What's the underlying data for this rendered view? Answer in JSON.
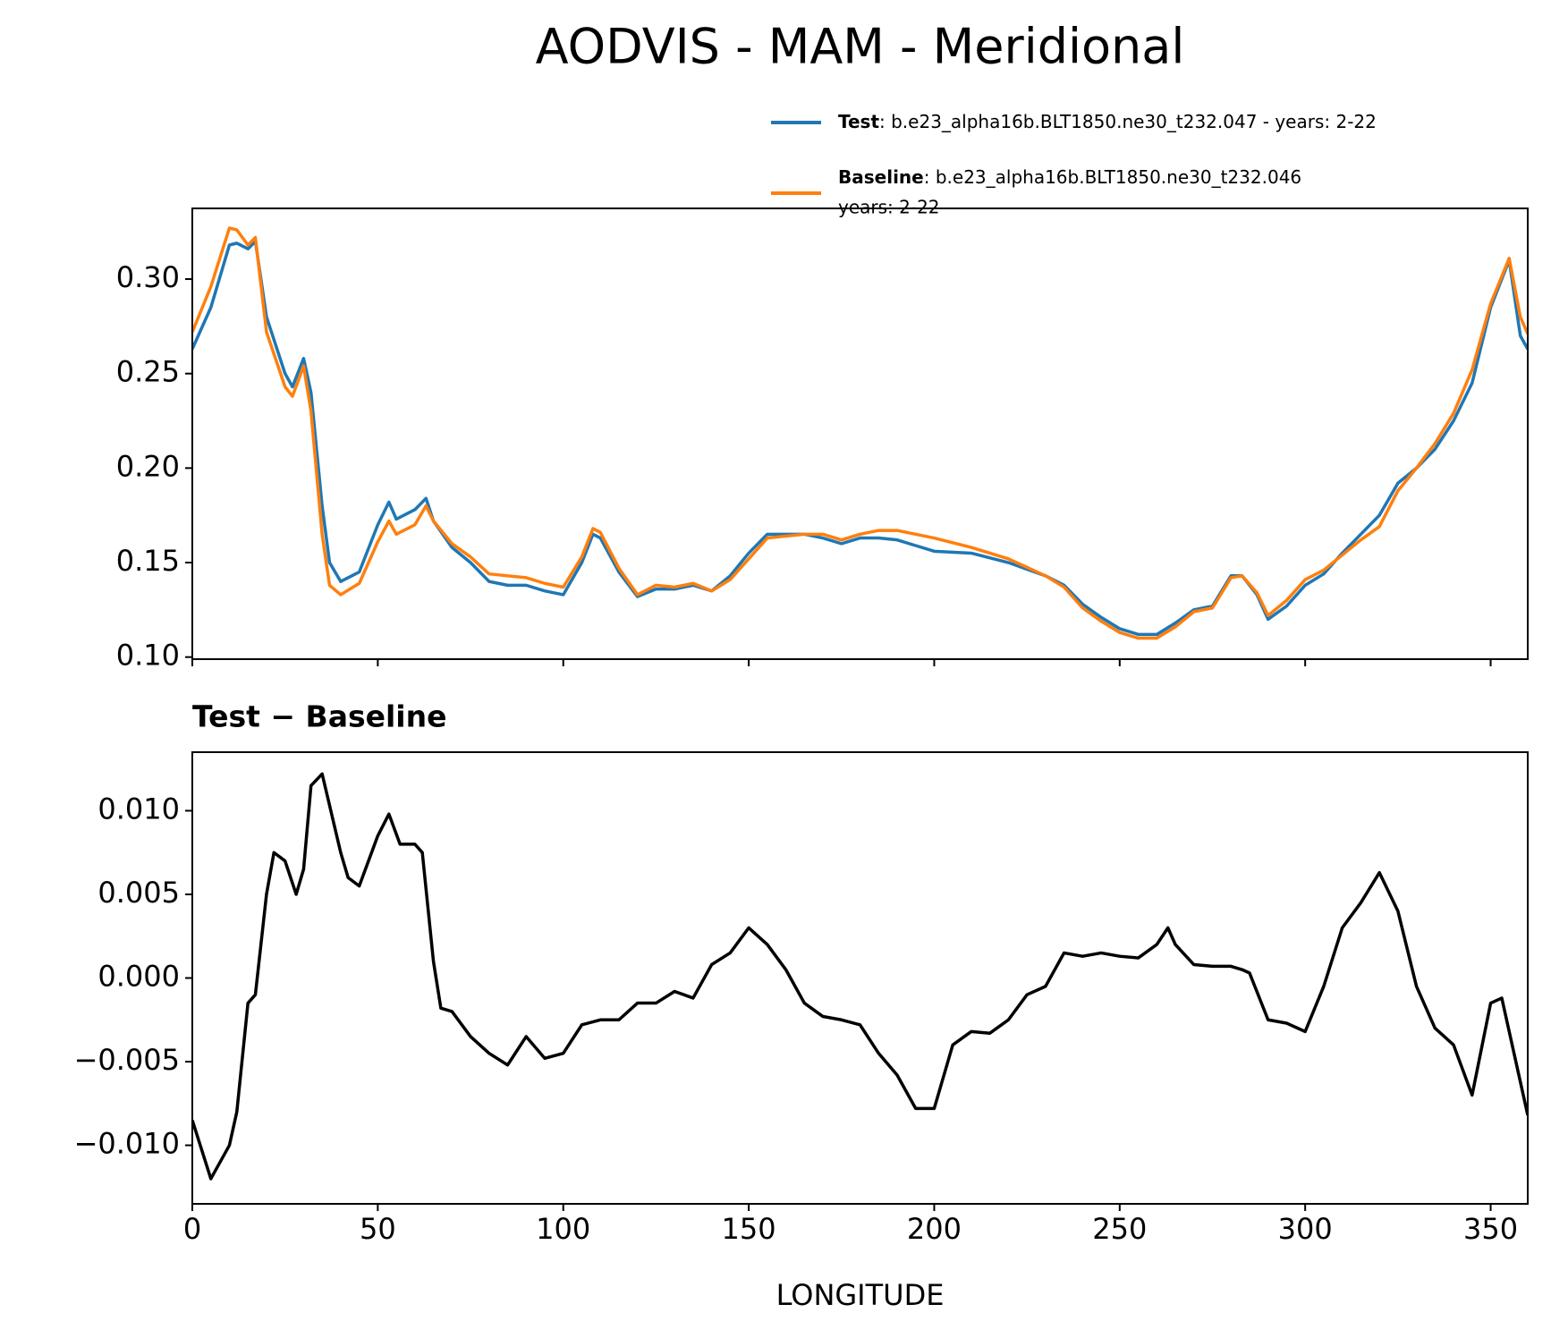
{
  "chart_data": [
    {
      "type": "line",
      "title": "AODVIS - MAM - Meridional",
      "x": [
        0,
        5,
        10,
        12,
        15,
        17,
        20,
        25,
        27,
        30,
        32,
        35,
        37,
        40,
        45,
        50,
        53,
        55,
        60,
        63,
        65,
        70,
        75,
        80,
        85,
        90,
        95,
        100,
        105,
        108,
        110,
        115,
        120,
        125,
        130,
        135,
        140,
        145,
        150,
        155,
        160,
        165,
        170,
        175,
        180,
        185,
        190,
        195,
        200,
        210,
        220,
        230,
        235,
        240,
        245,
        250,
        255,
        260,
        265,
        270,
        275,
        280,
        283,
        287,
        290,
        295,
        300,
        305,
        310,
        315,
        320,
        325,
        330,
        335,
        340,
        345,
        350,
        355,
        358,
        360
      ],
      "series": [
        {
          "name": "Test",
          "label": [
            ": b.e23_alpha16b.BLT1850.ne30_t232.047 - years: 2-22"
          ],
          "color": "#1f77b4",
          "values": [
            0.263,
            0.285,
            0.318,
            0.319,
            0.316,
            0.32,
            0.28,
            0.25,
            0.243,
            0.258,
            0.24,
            0.18,
            0.15,
            0.14,
            0.145,
            0.17,
            0.182,
            0.173,
            0.178,
            0.184,
            0.172,
            0.158,
            0.15,
            0.14,
            0.138,
            0.138,
            0.135,
            0.133,
            0.15,
            0.165,
            0.163,
            0.145,
            0.132,
            0.136,
            0.136,
            0.138,
            0.135,
            0.143,
            0.155,
            0.165,
            0.165,
            0.165,
            0.163,
            0.16,
            0.163,
            0.163,
            0.162,
            0.159,
            0.156,
            0.155,
            0.15,
            0.143,
            0.138,
            0.128,
            0.121,
            0.115,
            0.112,
            0.112,
            0.118,
            0.125,
            0.127,
            0.143,
            0.143,
            0.133,
            0.12,
            0.127,
            0.138,
            0.144,
            0.155,
            0.165,
            0.175,
            0.192,
            0.2,
            0.21,
            0.225,
            0.245,
            0.285,
            0.31,
            0.27,
            0.263
          ]
        },
        {
          "name": "Baseline",
          "label": [
            ": b.e23_alpha16b.BLT1850.ne30_t232.046",
            "years: 2-22"
          ],
          "color": "#ff7f0e",
          "values": [
            0.272,
            0.296,
            0.327,
            0.326,
            0.318,
            0.322,
            0.272,
            0.243,
            0.238,
            0.254,
            0.23,
            0.165,
            0.138,
            0.133,
            0.139,
            0.161,
            0.172,
            0.165,
            0.17,
            0.18,
            0.172,
            0.16,
            0.153,
            0.144,
            0.143,
            0.142,
            0.139,
            0.137,
            0.153,
            0.168,
            0.166,
            0.147,
            0.133,
            0.138,
            0.137,
            0.139,
            0.135,
            0.141,
            0.152,
            0.163,
            0.164,
            0.165,
            0.165,
            0.162,
            0.165,
            0.167,
            0.167,
            0.165,
            0.163,
            0.158,
            0.152,
            0.143,
            0.137,
            0.126,
            0.119,
            0.113,
            0.11,
            0.11,
            0.116,
            0.124,
            0.126,
            0.142,
            0.143,
            0.134,
            0.122,
            0.13,
            0.141,
            0.146,
            0.154,
            0.162,
            0.169,
            0.188,
            0.2,
            0.213,
            0.229,
            0.252,
            0.287,
            0.311,
            0.28,
            0.271
          ]
        }
      ],
      "xlim": [
        0,
        360
      ],
      "xticks": [
        0,
        50,
        100,
        150,
        200,
        250,
        300,
        350
      ],
      "sharex": true,
      "ylim": [
        0.0989,
        0.3374
      ],
      "yticks": [
        {
          "value": 0.1,
          "label": "0.10"
        },
        0.15,
        {
          "value": 0.2,
          "label": "0.20"
        },
        0.25,
        {
          "value": 0.3,
          "label": "0.30"
        }
      ]
    },
    {
      "type": "line",
      "title": "Test − Baseline",
      "xlabel": "LONGITUDE",
      "x": [
        0,
        5,
        10,
        12,
        15,
        17,
        20,
        22,
        25,
        28,
        30,
        32,
        35,
        40,
        42,
        45,
        50,
        53,
        56,
        60,
        62,
        65,
        67,
        70,
        75,
        80,
        85,
        90,
        95,
        100,
        105,
        110,
        115,
        120,
        125,
        130,
        135,
        140,
        145,
        150,
        155,
        160,
        165,
        170,
        175,
        180,
        185,
        190,
        195,
        200,
        205,
        210,
        215,
        220,
        225,
        230,
        235,
        240,
        245,
        250,
        255,
        260,
        263,
        265,
        270,
        275,
        280,
        283,
        285,
        290,
        295,
        300,
        305,
        310,
        315,
        320,
        325,
        330,
        335,
        340,
        345,
        350,
        353,
        360
      ],
      "series": [
        {
          "color": "#000000",
          "values": [
            -0.0085,
            -0.012,
            -0.01,
            -0.008,
            -0.0015,
            -0.001,
            0.005,
            0.0075,
            0.007,
            0.005,
            0.0065,
            0.0115,
            0.0122,
            0.0075,
            0.006,
            0.0055,
            0.0085,
            0.0098,
            0.008,
            0.008,
            0.0075,
            0.001,
            -0.0018,
            -0.002,
            -0.0035,
            -0.0045,
            -0.0052,
            -0.0035,
            -0.0048,
            -0.0045,
            -0.0028,
            -0.0025,
            -0.0025,
            -0.0015,
            -0.0015,
            -0.0008,
            -0.0012,
            0.0008,
            0.0015,
            0.003,
            0.002,
            0.0005,
            -0.0015,
            -0.0023,
            -0.0025,
            -0.0028,
            -0.0045,
            -0.0058,
            -0.0078,
            -0.0078,
            -0.004,
            -0.0032,
            -0.0033,
            -0.0025,
            -0.001,
            -0.0005,
            0.0015,
            0.0013,
            0.0015,
            0.0013,
            0.0012,
            0.002,
            0.003,
            0.002,
            0.0008,
            0.0007,
            0.0007,
            0.0005,
            0.0003,
            -0.0025,
            -0.0027,
            -0.0032,
            -0.0005,
            0.003,
            0.0045,
            0.0063,
            0.004,
            -0.0005,
            -0.003,
            -0.004,
            -0.007,
            -0.0015,
            -0.0012,
            -0.0082
          ]
        }
      ],
      "xlim": [
        0,
        360
      ],
      "xticks": [
        0,
        50,
        100,
        150,
        200,
        250,
        300,
        350
      ],
      "ylim": [
        -0.0135,
        0.0135
      ],
      "yticks": [
        {
          "value": -0.01,
          "label": "−0.010"
        },
        {
          "value": -0.005,
          "label": "−0.005"
        },
        {
          "value": 0,
          "label": "0.000"
        },
        {
          "value": 0.005,
          "label": "0.005"
        },
        {
          "value": 0.01,
          "label": "0.010"
        }
      ]
    }
  ]
}
